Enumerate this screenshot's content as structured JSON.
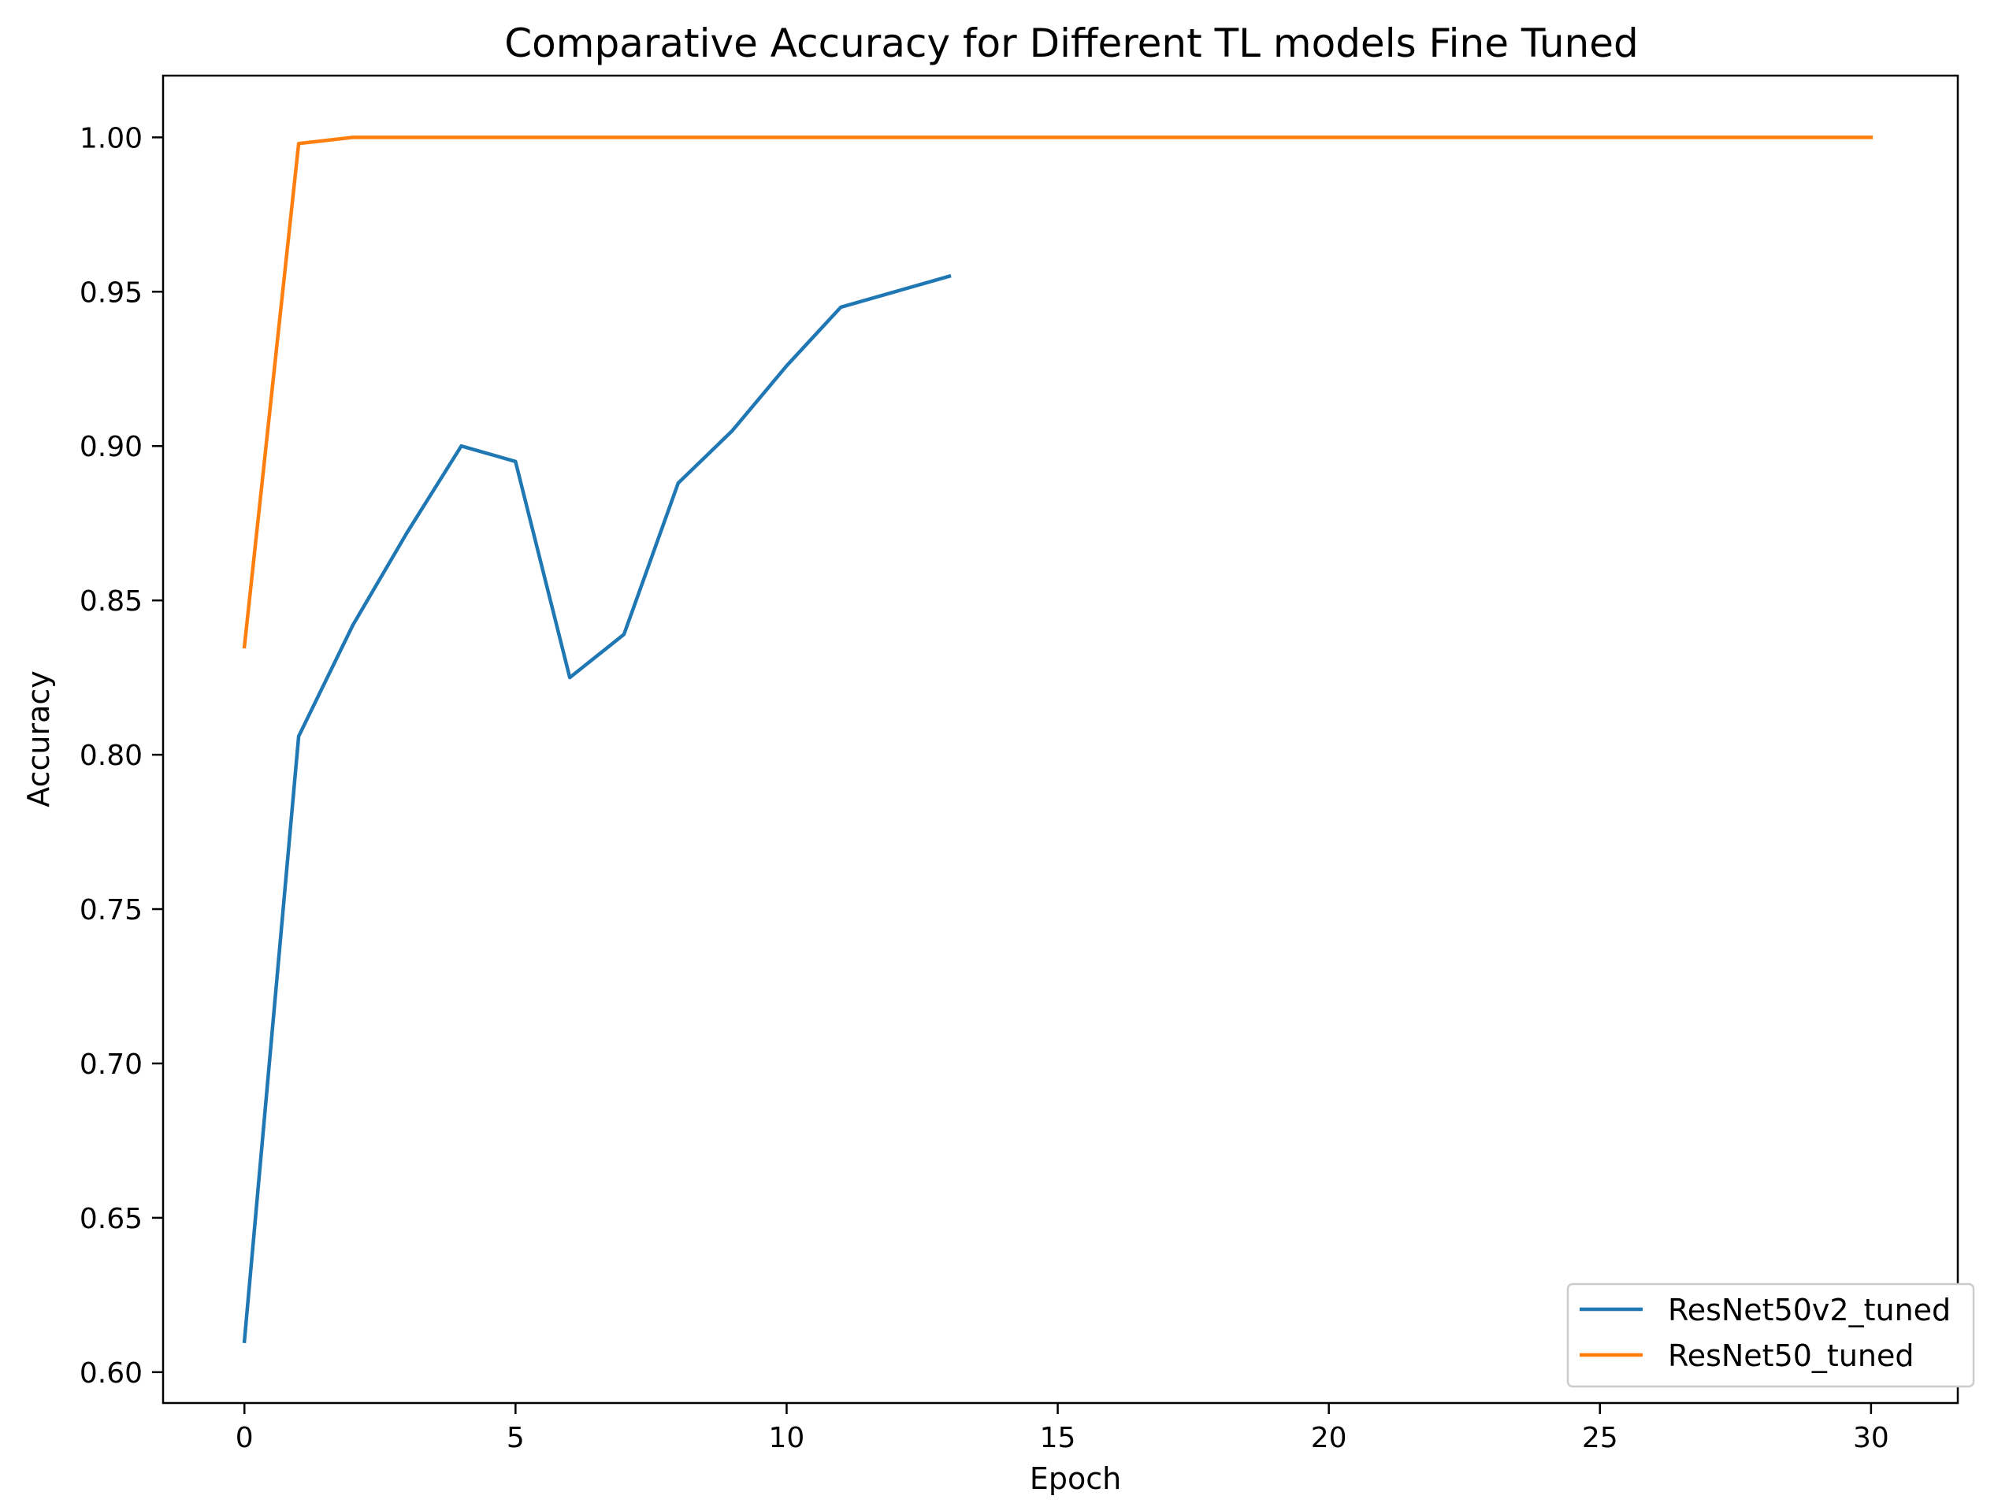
{
  "chart_data": {
    "type": "line",
    "title": "Comparative Accuracy for Different TL models Fine Tuned",
    "xlabel": "Epoch",
    "ylabel": "Accuracy",
    "xlim": [
      -1.5,
      31.6
    ],
    "ylim": [
      0.59,
      1.02
    ],
    "xticks": [
      0,
      5,
      10,
      15,
      20,
      25,
      30
    ],
    "yticks": [
      0.6,
      0.65,
      0.7,
      0.75,
      0.8,
      0.85,
      0.9,
      0.95,
      1.0
    ],
    "xtick_labels": [
      "0",
      "5",
      "10",
      "15",
      "20",
      "25",
      "30"
    ],
    "ytick_labels": [
      "0.60",
      "0.65",
      "0.70",
      "0.75",
      "0.80",
      "0.85",
      "0.90",
      "0.95",
      "1.00"
    ],
    "grid": false,
    "legend_position": "bottom-right",
    "series": [
      {
        "name": "ResNet50v2_tuned",
        "color": "#1f77b4",
        "x": [
          0,
          1,
          2,
          3,
          4,
          5,
          6,
          7,
          8,
          9,
          10,
          11,
          12,
          13
        ],
        "y": [
          0.61,
          0.806,
          0.842,
          0.872,
          0.9,
          0.895,
          0.825,
          0.839,
          0.888,
          0.905,
          0.926,
          0.945,
          0.95,
          0.955
        ]
      },
      {
        "name": "ResNet50_tuned",
        "color": "#ff7f0e",
        "x": [
          0,
          1,
          2,
          3,
          4,
          5,
          6,
          7,
          8,
          9,
          10,
          11,
          12,
          13,
          14,
          15,
          16,
          17,
          18,
          19,
          20,
          21,
          22,
          23,
          24,
          25,
          26,
          27,
          28,
          29,
          30
        ],
        "y": [
          0.835,
          0.998,
          1.0,
          1.0,
          1.0,
          1.0,
          1.0,
          1.0,
          1.0,
          1.0,
          1.0,
          1.0,
          1.0,
          1.0,
          1.0,
          1.0,
          1.0,
          1.0,
          1.0,
          1.0,
          1.0,
          1.0,
          1.0,
          1.0,
          1.0,
          1.0,
          1.0,
          1.0,
          1.0,
          1.0,
          1.0
        ]
      }
    ]
  }
}
